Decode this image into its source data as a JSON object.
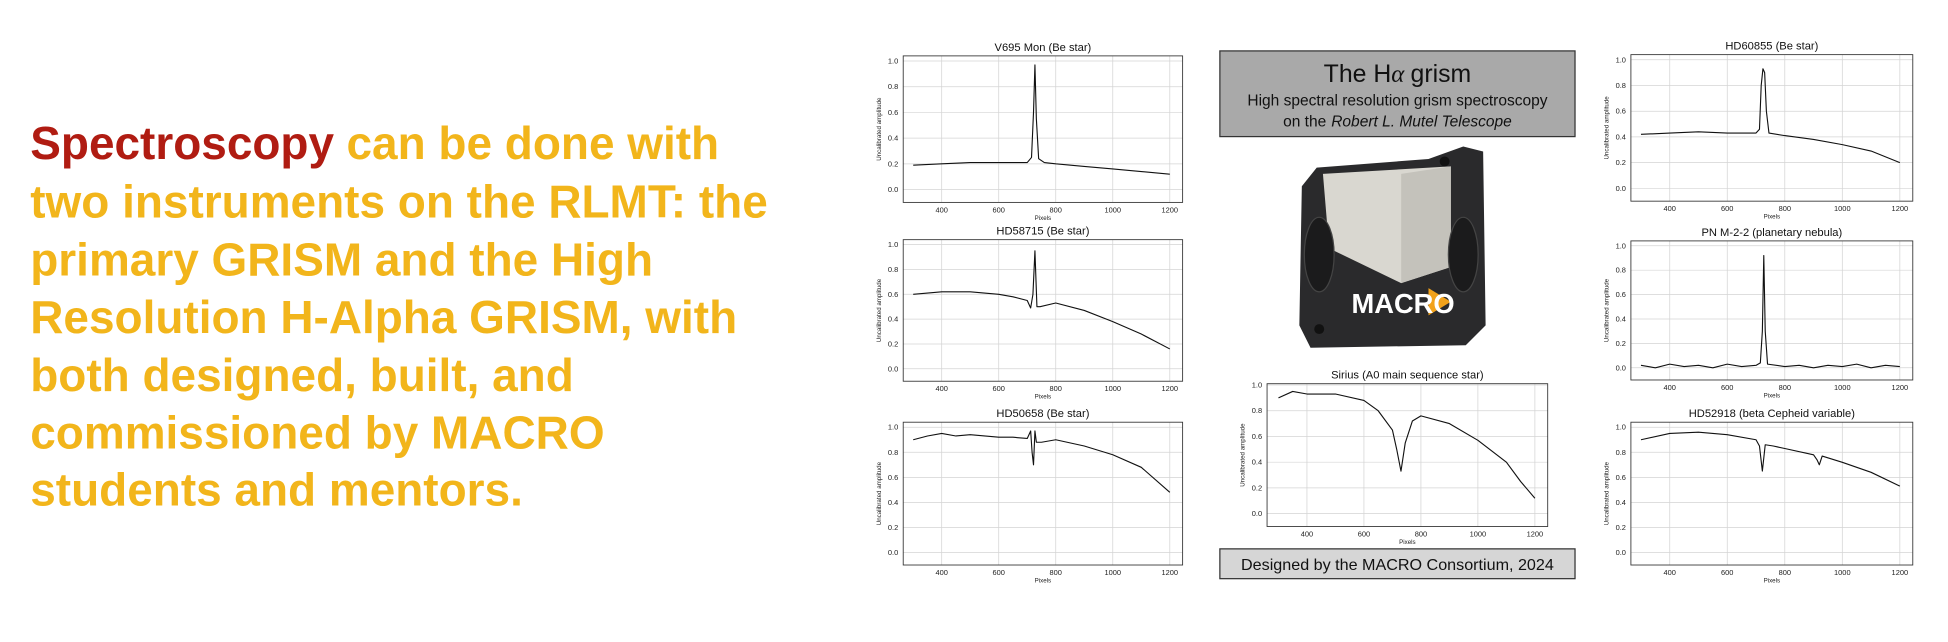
{
  "slide": {
    "highlight": "Spectroscopy",
    "body_lines": [
      "can be done with",
      "two instruments on the RLMT: the",
      "primary GRISM and the High",
      "Resolution H-Alpha GRISM, with",
      "both designed, built, and",
      "commissioned by MACRO",
      "students and mentors."
    ],
    "panel_title_parts": [
      "The H",
      "α",
      "grism"
    ],
    "panel_subtitle": "High spectral resolution grism spectroscopy",
    "panel_subtitle2_parts": [
      "on the",
      "Robert L. Mutel Telescope"
    ],
    "device_label": "MACRO",
    "footer": "Designed by the MACRO Consortium, 2024"
  },
  "chart_data": [
    {
      "type": "line",
      "title": "V695 Mon (Be star)",
      "xlabel": "Pixels",
      "ylabel": "Uncalibrated amplitude",
      "color": "#111111",
      "grid": true,
      "xlim": [
        265,
        1245
      ],
      "ylim": [
        -0.1,
        1.04
      ],
      "xticks": [
        400,
        600,
        800,
        1000,
        1200
      ],
      "yticks": [
        {
          "value": 0,
          "label": "0.0"
        },
        0.2,
        0.4,
        0.6,
        0.8,
        {
          "value": 1,
          "label": "1.0"
        }
      ],
      "x": [
        300,
        400,
        500,
        600,
        700,
        715,
        722,
        727,
        732,
        740,
        760,
        800,
        900,
        1000,
        1100,
        1200
      ],
      "values": [
        0.19,
        0.2,
        0.21,
        0.21,
        0.21,
        0.25,
        0.6,
        0.97,
        0.55,
        0.24,
        0.21,
        0.2,
        0.18,
        0.16,
        0.14,
        0.12
      ]
    },
    {
      "type": "line",
      "title": "HD58715 (Be star)",
      "xlabel": "Pixels",
      "ylabel": "Uncalibrated amplitude",
      "color": "#111111",
      "grid": true,
      "xlim": [
        265,
        1245
      ],
      "ylim": [
        -0.1,
        1.04
      ],
      "xticks": [
        400,
        600,
        800,
        1000,
        1200
      ],
      "yticks": [
        {
          "value": 0,
          "label": "0.0"
        },
        0.2,
        0.4,
        0.6,
        0.8,
        {
          "value": 1,
          "label": "1.0"
        }
      ],
      "x": [
        300,
        400,
        500,
        600,
        650,
        700,
        712,
        720,
        727,
        734,
        745,
        800,
        900,
        1000,
        1100,
        1200
      ],
      "values": [
        0.6,
        0.62,
        0.62,
        0.6,
        0.58,
        0.55,
        0.49,
        0.6,
        0.95,
        0.5,
        0.5,
        0.53,
        0.47,
        0.38,
        0.28,
        0.16
      ]
    },
    {
      "type": "line",
      "title": "HD50658 (Be star)",
      "xlabel": "Pixels",
      "ylabel": "Uncalibrated amplitude",
      "color": "#111111",
      "grid": true,
      "xlim": [
        265,
        1245
      ],
      "ylim": [
        -0.1,
        1.04
      ],
      "xticks": [
        400,
        600,
        800,
        1000,
        1200
      ],
      "yticks": [
        {
          "value": 0,
          "label": "0.0"
        },
        0.2,
        0.4,
        0.6,
        0.8,
        {
          "value": 1,
          "label": "1.0"
        }
      ],
      "x": [
        300,
        350,
        400,
        450,
        500,
        550,
        600,
        650,
        700,
        712,
        717,
        722,
        727,
        732,
        750,
        800,
        900,
        1000,
        1100,
        1200
      ],
      "values": [
        0.9,
        0.93,
        0.95,
        0.93,
        0.94,
        0.93,
        0.92,
        0.92,
        0.91,
        0.97,
        0.8,
        0.7,
        0.97,
        0.88,
        0.88,
        0.9,
        0.85,
        0.78,
        0.68,
        0.48
      ]
    },
    {
      "type": "line",
      "title": "Sirius (A0 main sequence star)",
      "xlabel": "Pixels",
      "ylabel": "Uncalibrated amplitude",
      "color": "#111111",
      "grid": true,
      "xlim": [
        260,
        1245
      ],
      "ylim": [
        -0.1,
        1.01
      ],
      "xticks": [
        400,
        600,
        800,
        1000,
        1200
      ],
      "yticks": [
        {
          "value": 0,
          "label": "0.0"
        },
        0.2,
        0.4,
        0.6,
        0.8,
        {
          "value": 1,
          "label": "1.0"
        }
      ],
      "x": [
        300,
        350,
        400,
        500,
        600,
        650,
        700,
        715,
        730,
        745,
        770,
        800,
        900,
        1000,
        1100,
        1150,
        1200
      ],
      "values": [
        0.9,
        0.95,
        0.93,
        0.93,
        0.88,
        0.8,
        0.65,
        0.5,
        0.33,
        0.55,
        0.72,
        0.76,
        0.7,
        0.57,
        0.4,
        0.25,
        0.12
      ]
    },
    {
      "type": "line",
      "title": "HD60855 (Be star)",
      "xlabel": "Pixels",
      "ylabel": "Uncalibrated amplitude",
      "color": "#111111",
      "grid": true,
      "xlim": [
        265,
        1245
      ],
      "ylim": [
        -0.1,
        1.04
      ],
      "xticks": [
        400,
        600,
        800,
        1000,
        1200
      ],
      "yticks": [
        {
          "value": 0,
          "label": "0.0"
        },
        0.2,
        0.4,
        0.6,
        0.8,
        {
          "value": 1,
          "label": "1.0"
        }
      ],
      "x": [
        300,
        400,
        500,
        600,
        700,
        712,
        718,
        724,
        730,
        736,
        745,
        800,
        900,
        1000,
        1100,
        1200
      ],
      "values": [
        0.42,
        0.43,
        0.44,
        0.43,
        0.43,
        0.46,
        0.8,
        0.93,
        0.9,
        0.6,
        0.43,
        0.41,
        0.38,
        0.34,
        0.29,
        0.2
      ]
    },
    {
      "type": "line",
      "title": "PN M-2-2 (planetary nebula)",
      "xlabel": "Pixels",
      "ylabel": "Uncalibrated amplitude",
      "color": "#111111",
      "grid": true,
      "xlim": [
        265,
        1245
      ],
      "ylim": [
        -0.1,
        1.04
      ],
      "xticks": [
        400,
        600,
        800,
        1000,
        1200
      ],
      "yticks": [
        {
          "value": 0,
          "label": "0.0"
        },
        0.2,
        0.4,
        0.6,
        0.8,
        {
          "value": 1,
          "label": "1.0"
        }
      ],
      "x": [
        300,
        350,
        400,
        450,
        500,
        550,
        600,
        650,
        700,
        715,
        722,
        727,
        732,
        740,
        800,
        850,
        900,
        950,
        1000,
        1050,
        1100,
        1150,
        1200
      ],
      "values": [
        0.02,
        0,
        0.03,
        0.01,
        0.02,
        0,
        0.03,
        0.01,
        0.02,
        0.04,
        0.3,
        0.92,
        0.3,
        0.03,
        0.01,
        0.02,
        0,
        0.02,
        0.01,
        0.03,
        0,
        0.02,
        0.01
      ]
    },
    {
      "type": "line",
      "title": "HD52918 (beta Cepheid variable)",
      "xlabel": "Pixels",
      "ylabel": "Uncalibrated amplitude",
      "color": "#111111",
      "grid": true,
      "xlim": [
        265,
        1245
      ],
      "ylim": [
        -0.1,
        1.04
      ],
      "xticks": [
        400,
        600,
        800,
        1000,
        1200
      ],
      "yticks": [
        {
          "value": 0,
          "label": "0.0"
        },
        0.2,
        0.4,
        0.6,
        0.8,
        {
          "value": 1,
          "label": "1.0"
        }
      ],
      "x": [
        300,
        400,
        500,
        600,
        700,
        712,
        722,
        732,
        760,
        800,
        900,
        912,
        920,
        930,
        1000,
        1100,
        1200
      ],
      "values": [
        0.9,
        0.95,
        0.96,
        0.94,
        0.9,
        0.85,
        0.65,
        0.86,
        0.85,
        0.83,
        0.78,
        0.74,
        0.7,
        0.77,
        0.72,
        0.64,
        0.53
      ]
    }
  ]
}
